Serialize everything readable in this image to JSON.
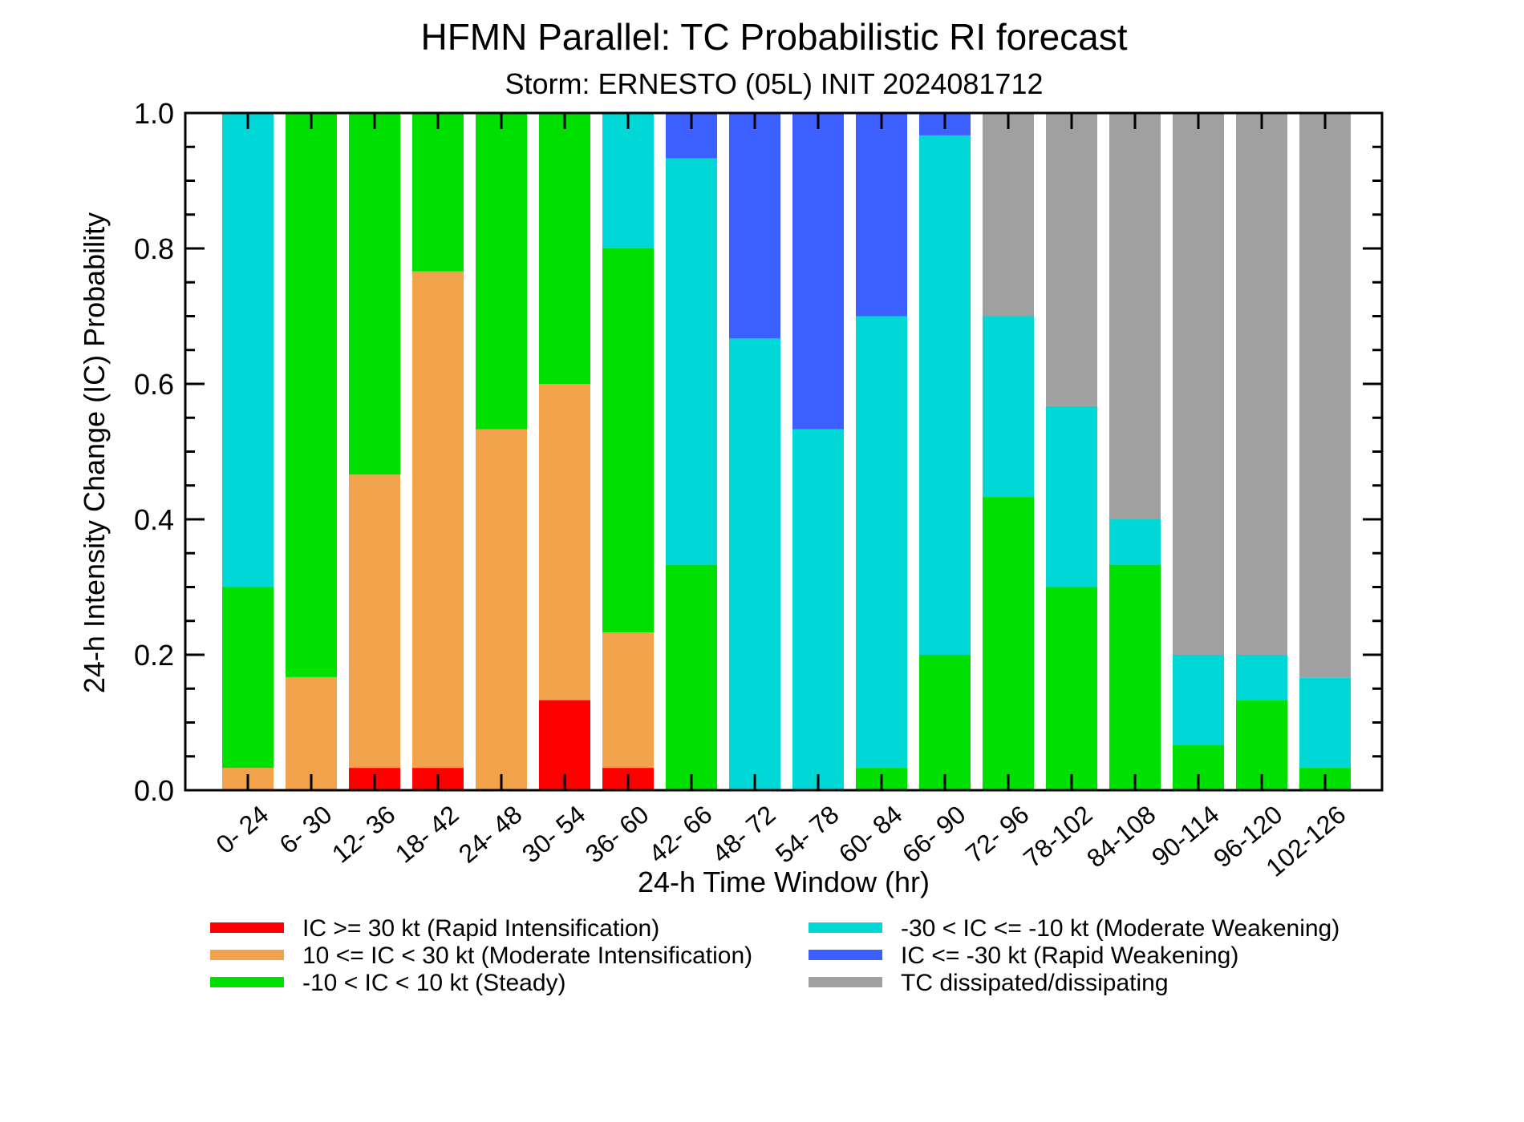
{
  "chart_data": {
    "type": "bar",
    "stacked": true,
    "title": "HFMN Parallel: TC Probabilistic RI forecast",
    "subtitle": "Storm: ERNESTO (05L) INIT 2024081712",
    "xlabel": "24-h Time Window (hr)",
    "ylabel": "24-h Intensity Change (IC) Probability",
    "ylim": [
      0,
      1
    ],
    "yticks": [
      "0.0",
      "0.2",
      "0.4",
      "0.6",
      "0.8",
      "1.0"
    ],
    "categories": [
      "0- 24",
      "6- 30",
      "12- 36",
      "18- 42",
      "24- 48",
      "30- 54",
      "36- 60",
      "42- 66",
      "48- 72",
      "54- 78",
      "60- 84",
      "66- 90",
      "72- 96",
      "78-102",
      "84-108",
      "90-114",
      "96-120",
      "102-126"
    ],
    "series": [
      {
        "name": "IC >= 30 kt (Rapid Intensification)",
        "color": "#ff0000",
        "values": [
          0,
          0,
          0.033,
          0.033,
          0,
          0.133,
          0.033,
          0,
          0,
          0,
          0,
          0,
          0,
          0,
          0,
          0,
          0,
          0
        ]
      },
      {
        "name": "10 <= IC < 30 kt (Moderate Intensification)",
        "color": "#f2a24a",
        "values": [
          0.033,
          0.167,
          0.433,
          0.733,
          0.533,
          0.467,
          0.2,
          0,
          0,
          0,
          0,
          0,
          0,
          0,
          0,
          0,
          0,
          0
        ]
      },
      {
        "name": "-10 < IC < 10 kt (Steady)",
        "color": "#00e000",
        "values": [
          0.267,
          0.833,
          0.533,
          0.233,
          0.467,
          0.4,
          0.567,
          0.333,
          0,
          0,
          0.033,
          0.2,
          0.433,
          0.3,
          0.333,
          0.067,
          0.133,
          0.033
        ]
      },
      {
        "name": "-30 < IC <= -10 kt (Moderate Weakening)",
        "color": "#00d8d8",
        "values": [
          0.7,
          0,
          0,
          0,
          0,
          0,
          0.2,
          0.6,
          0.667,
          0.533,
          0.667,
          0.767,
          0.267,
          0.267,
          0.067,
          0.133,
          0.067,
          0.133
        ]
      },
      {
        "name": "IC <= -30 kt (Rapid Weakening)",
        "color": "#3c5fff",
        "values": [
          0,
          0,
          0,
          0,
          0,
          0,
          0,
          0.067,
          0.333,
          0.467,
          0.3,
          0.033,
          0,
          0,
          0,
          0,
          0,
          0
        ]
      },
      {
        "name": "TC dissipated/dissipating",
        "color": "#a0a0a0",
        "values": [
          0,
          0,
          0,
          0,
          0,
          0,
          0,
          0,
          0,
          0,
          0,
          0,
          0.3,
          0.433,
          0.6,
          0.8,
          0.8,
          0.833
        ]
      }
    ],
    "legend_placement": "bottom",
    "grid": false
  }
}
